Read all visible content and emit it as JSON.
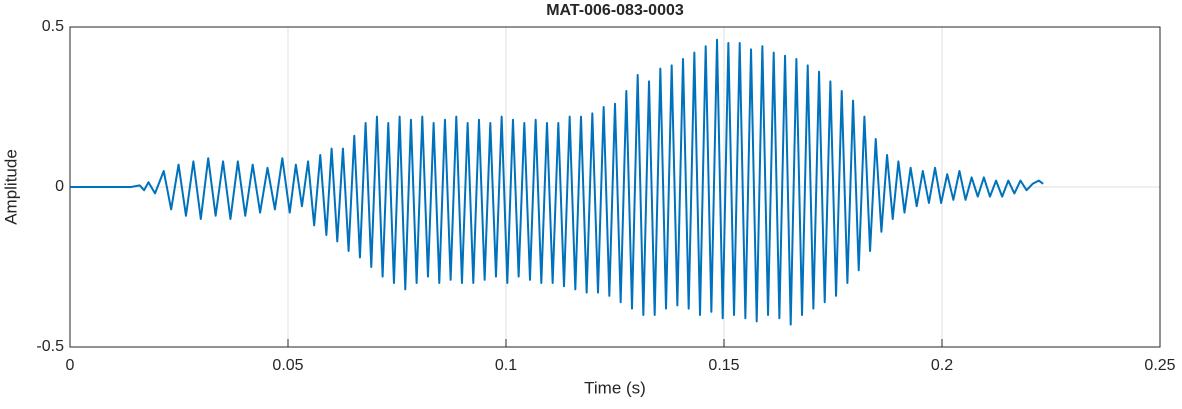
{
  "chart_data": {
    "type": "line",
    "title": "MAT-006-083-0003",
    "x_label": "Time (s)",
    "y_label": "Amplitude",
    "xlim": [
      0,
      0.25
    ],
    "xticks": [
      0,
      0.05,
      0.1,
      0.15,
      0.2,
      0.25
    ],
    "ylim": [
      -0.5,
      0.5
    ],
    "yticks": [
      -0.5,
      0,
      0.5
    ],
    "grid": true,
    "x": [
      0,
      0.014,
      0.016,
      0.017,
      0.018,
      0.0195,
      0.0215,
      0.0232,
      0.0249,
      0.0266,
      0.0283,
      0.03,
      0.0317,
      0.0334,
      0.0351,
      0.0368,
      0.0385,
      0.0402,
      0.0419,
      0.0436,
      0.0453,
      0.047,
      0.0487,
      0.0504,
      0.0518,
      0.0532,
      0.0546,
      0.056,
      0.0574,
      0.0588,
      0.06,
      0.0613,
      0.0626,
      0.0639,
      0.0652,
      0.0665,
      0.0678,
      0.0691,
      0.0704,
      0.0717,
      0.073,
      0.0743,
      0.0756,
      0.0769,
      0.0782,
      0.0795,
      0.0808,
      0.0821,
      0.0834,
      0.0847,
      0.086,
      0.0873,
      0.0886,
      0.0899,
      0.0912,
      0.0925,
      0.0938,
      0.0951,
      0.0964,
      0.0977,
      0.099,
      0.1003,
      0.1016,
      0.1029,
      0.1042,
      0.1055,
      0.1068,
      0.1081,
      0.1094,
      0.1107,
      0.112,
      0.1133,
      0.1146,
      0.1159,
      0.1172,
      0.1185,
      0.1198,
      0.1211,
      0.1224,
      0.1237,
      0.125,
      0.1263,
      0.1276,
      0.1289,
      0.1302,
      0.1315,
      0.1328,
      0.1341,
      0.1354,
      0.1367,
      0.138,
      0.1393,
      0.1406,
      0.1419,
      0.1432,
      0.1445,
      0.1458,
      0.1471,
      0.1484,
      0.1497,
      0.151,
      0.1523,
      0.1536,
      0.1549,
      0.1562,
      0.1575,
      0.1588,
      0.1601,
      0.1614,
      0.1627,
      0.164,
      0.1653,
      0.1666,
      0.1679,
      0.1692,
      0.1705,
      0.1718,
      0.1731,
      0.1744,
      0.1757,
      0.177,
      0.1783,
      0.1796,
      0.1809,
      0.1822,
      0.1835,
      0.1848,
      0.1861,
      0.1874,
      0.1887,
      0.19,
      0.1914,
      0.1928,
      0.1942,
      0.1956,
      0.197,
      0.1984,
      0.1998,
      0.2012,
      0.2026,
      0.204,
      0.2054,
      0.2068,
      0.2082,
      0.2096,
      0.211,
      0.2124,
      0.2138,
      0.2152,
      0.2166,
      0.218,
      0.2194,
      0.2208,
      0.2222,
      0.2232
    ],
    "series": [
      {
        "color": "#0072bd",
        "values": [
          0,
          0,
          0.005,
          -0.01,
          0.015,
          -0.02,
          0.05,
          -0.07,
          0.07,
          -0.09,
          0.08,
          -0.1,
          0.09,
          -0.09,
          0.08,
          -0.1,
          0.08,
          -0.09,
          0.07,
          -0.08,
          0.06,
          -0.07,
          0.09,
          -0.08,
          0.07,
          -0.06,
          0.08,
          -0.12,
          0.1,
          -0.15,
          0.12,
          -0.17,
          0.12,
          -0.2,
          0.16,
          -0.22,
          0.2,
          -0.25,
          0.22,
          -0.28,
          0.2,
          -0.3,
          0.22,
          -0.32,
          0.21,
          -0.3,
          0.22,
          -0.28,
          0.2,
          -0.3,
          0.21,
          -0.29,
          0.22,
          -0.3,
          0.2,
          -0.3,
          0.21,
          -0.29,
          0.2,
          -0.28,
          0.22,
          -0.3,
          0.21,
          -0.28,
          0.2,
          -0.29,
          0.21,
          -0.3,
          0.2,
          -0.3,
          0.2,
          -0.31,
          0.22,
          -0.32,
          0.22,
          -0.33,
          0.23,
          -0.33,
          0.25,
          -0.34,
          0.26,
          -0.36,
          0.3,
          -0.38,
          0.35,
          -0.4,
          0.33,
          -0.4,
          0.37,
          -0.38,
          0.38,
          -0.37,
          0.4,
          -0.38,
          0.42,
          -0.4,
          0.44,
          -0.39,
          0.46,
          -0.41,
          0.45,
          -0.4,
          0.45,
          -0.41,
          0.43,
          -0.42,
          0.44,
          -0.4,
          0.42,
          -0.41,
          0.41,
          -0.43,
          0.4,
          -0.4,
          0.38,
          -0.38,
          0.36,
          -0.36,
          0.33,
          -0.34,
          0.3,
          -0.3,
          0.27,
          -0.26,
          0.22,
          -0.2,
          0.15,
          -0.14,
          0.1,
          -0.1,
          0.08,
          -0.08,
          0.06,
          -0.06,
          0.05,
          -0.05,
          0.06,
          -0.05,
          0.04,
          -0.04,
          0.05,
          -0.04,
          0.03,
          -0.03,
          0.03,
          -0.03,
          0.02,
          -0.03,
          0.02,
          -0.02,
          0.02,
          -0.01,
          0.01,
          0.02,
          0.01
        ]
      }
    ]
  }
}
